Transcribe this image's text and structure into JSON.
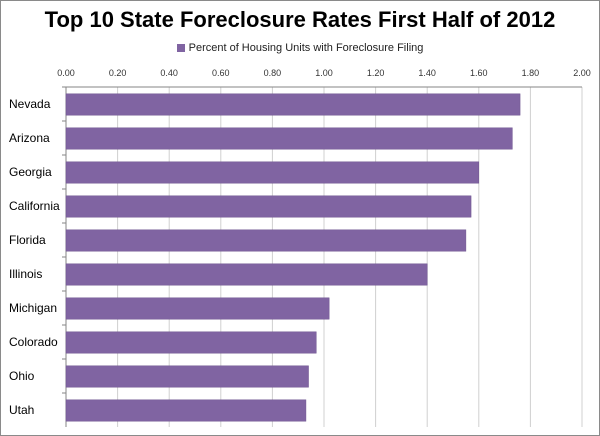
{
  "chart_data": {
    "type": "bar",
    "orientation": "horizontal",
    "title": "Top 10 State Foreclosure Rates First Half of 2012",
    "legend": {
      "position": "top",
      "entries": [
        "Percent of Housing Units with Foreclosure Filing"
      ]
    },
    "categories": [
      "Nevada",
      "Arizona",
      "Georgia",
      "California",
      "Florida",
      "Illinois",
      "Michigan",
      "Colorado",
      "Ohio",
      "Utah"
    ],
    "series": [
      {
        "name": "Percent of Housing Units with Foreclosure Filing",
        "values": [
          1.76,
          1.73,
          1.6,
          1.57,
          1.55,
          1.4,
          1.02,
          0.97,
          0.94,
          0.93
        ],
        "color": "#8064a2"
      }
    ],
    "xlim": [
      0,
      2.0
    ],
    "xticks": [
      "0.00",
      "0.20",
      "0.40",
      "0.60",
      "0.80",
      "1.00",
      "1.20",
      "1.40",
      "1.60",
      "1.80",
      "2.00"
    ],
    "axis_position": "top",
    "grid": true,
    "xlabel": "",
    "ylabel": ""
  }
}
